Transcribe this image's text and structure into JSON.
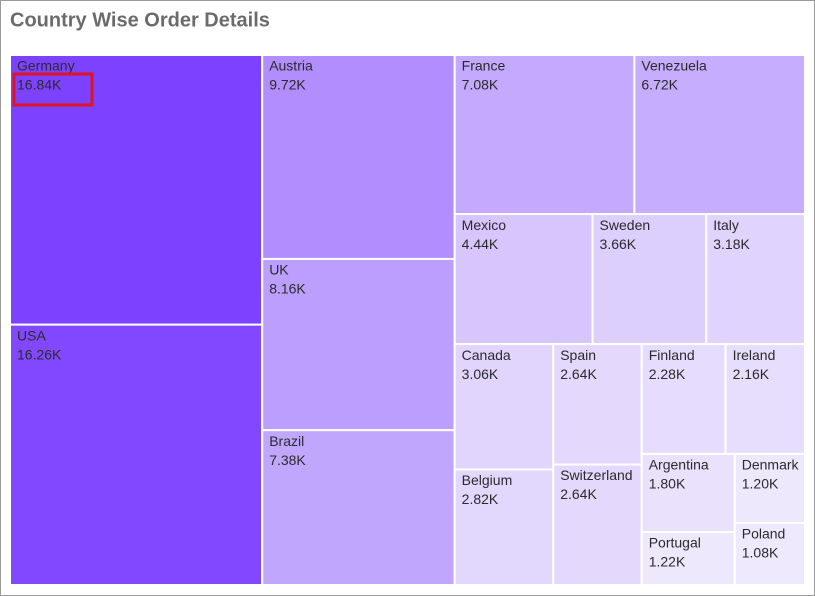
{
  "chart_data": {
    "type": "treemap",
    "title": "Country Wise Order Details",
    "categories": [
      "Germany",
      "USA",
      "Austria",
      "UK",
      "Brazil",
      "France",
      "Venezuela",
      "Mexico",
      "Sweden",
      "Italy",
      "Canada",
      "Belgium",
      "Spain",
      "Switzerland",
      "Finland",
      "Ireland",
      "Argentina",
      "Portugal",
      "Denmark",
      "Poland"
    ],
    "values": [
      16840,
      16260,
      9720,
      8160,
      7380,
      7080,
      6720,
      4440,
      3660,
      3180,
      3060,
      2820,
      2640,
      2640,
      2280,
      2160,
      1800,
      1220,
      1200,
      1080
    ],
    "value_labels": [
      "16.84K",
      "16.26K",
      "9.72K",
      "8.16K",
      "7.38K",
      "7.08K",
      "6.72K",
      "4.44K",
      "3.66K",
      "3.18K",
      "3.06K",
      "2.82K",
      "2.64K",
      "2.64K",
      "2.28K",
      "2.16K",
      "1.80K",
      "1.22K",
      "1.20K",
      "1.08K"
    ],
    "color_range": [
      "#efe9fd",
      "#7d42ff"
    ]
  }
}
